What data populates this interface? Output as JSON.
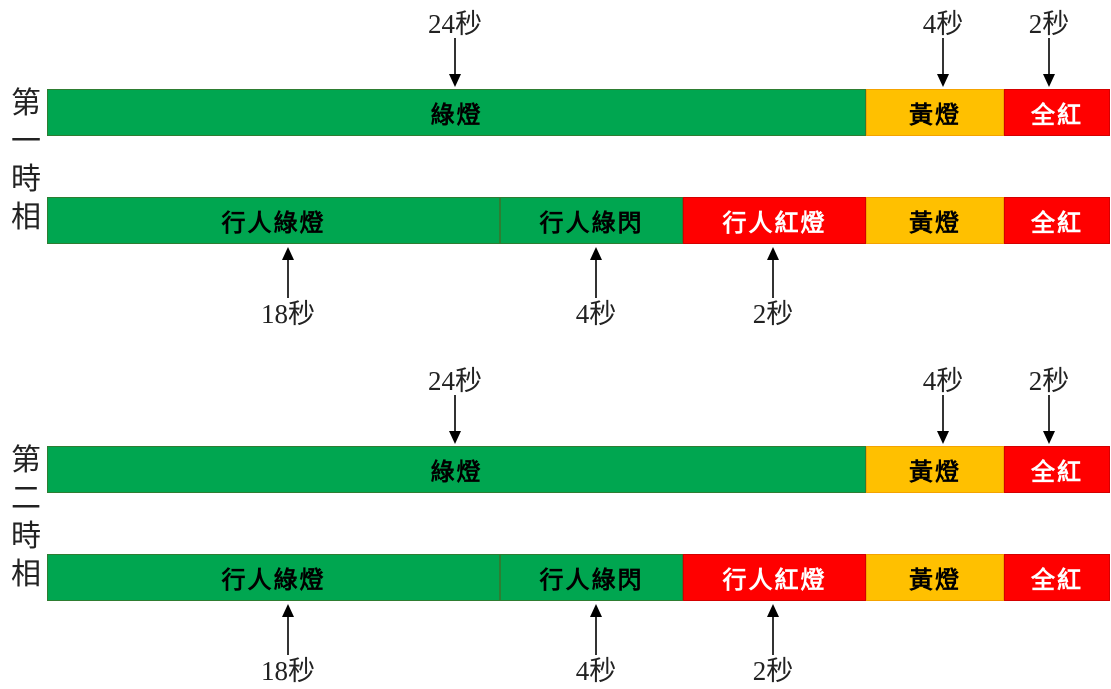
{
  "phases": [
    {
      "label_chars": [
        "第",
        "一",
        "時",
        "相"
      ],
      "vehicle": {
        "segments": [
          {
            "text": "綠燈",
            "color": "green"
          },
          {
            "text": "黃燈",
            "color": "yellow"
          },
          {
            "text": "全紅",
            "color": "red"
          }
        ],
        "durations": [
          "24秒",
          "4秒",
          "2秒"
        ]
      },
      "pedestrian": {
        "segments": [
          {
            "text": "行人綠燈",
            "color": "green"
          },
          {
            "text": "行人綠閃",
            "color": "green"
          },
          {
            "text": "行人紅燈",
            "color": "red"
          },
          {
            "text": "黃燈",
            "color": "yellow"
          },
          {
            "text": "全紅",
            "color": "red"
          }
        ],
        "durations": [
          "18秒",
          "4秒",
          "2秒"
        ]
      }
    },
    {
      "label_chars": [
        "第",
        "二",
        "時",
        "相"
      ],
      "vehicle": {
        "segments": [
          {
            "text": "綠燈",
            "color": "green"
          },
          {
            "text": "黃燈",
            "color": "yellow"
          },
          {
            "text": "全紅",
            "color": "red"
          }
        ],
        "durations": [
          "24秒",
          "4秒",
          "2秒"
        ]
      },
      "pedestrian": {
        "segments": [
          {
            "text": "行人綠燈",
            "color": "green"
          },
          {
            "text": "行人綠閃",
            "color": "green"
          },
          {
            "text": "行人紅燈",
            "color": "red"
          },
          {
            "text": "黃燈",
            "color": "yellow"
          },
          {
            "text": "全紅",
            "color": "red"
          }
        ],
        "durations": [
          "18秒",
          "4秒",
          "2秒"
        ]
      }
    }
  ],
  "colors": {
    "green": "#00a650",
    "yellow": "#ffc000",
    "red": "#ff0000"
  }
}
